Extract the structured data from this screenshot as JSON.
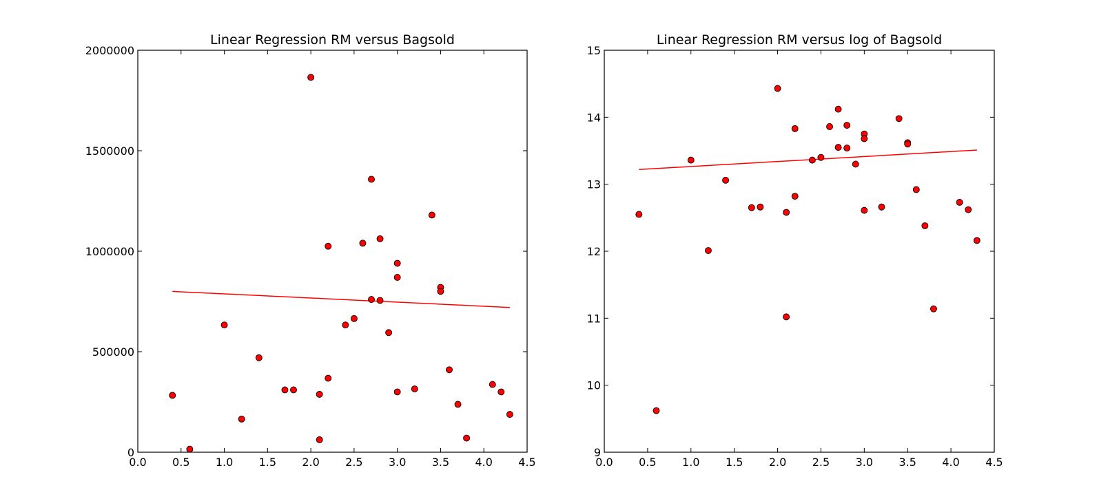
{
  "chart_data": [
    {
      "type": "scatter",
      "title": "Linear Regression RM versus Bagsold",
      "xlabel": "",
      "ylabel": "",
      "xlim": [
        0.0,
        4.5
      ],
      "ylim": [
        0,
        2000000
      ],
      "xticks": [
        "0.0",
        "0.5",
        "1.0",
        "1.5",
        "2.0",
        "2.5",
        "3.0",
        "3.5",
        "4.0",
        "4.5"
      ],
      "yticks": [
        "0",
        "500000",
        "1000000",
        "1500000",
        "2000000"
      ],
      "grid": false,
      "marker_color": "#ff0000",
      "line_color": "#ff0000",
      "points": [
        [
          0.4,
          283000
        ],
        [
          0.6,
          15000
        ],
        [
          1.0,
          633000
        ],
        [
          1.2,
          165000
        ],
        [
          1.4,
          470000
        ],
        [
          1.7,
          310000
        ],
        [
          1.8,
          310000
        ],
        [
          2.0,
          1865000
        ],
        [
          2.1,
          288000
        ],
        [
          2.1,
          62000
        ],
        [
          2.2,
          368000
        ],
        [
          2.2,
          1025000
        ],
        [
          2.4,
          633000
        ],
        [
          2.5,
          665000
        ],
        [
          2.6,
          1040000
        ],
        [
          2.7,
          1358000
        ],
        [
          2.7,
          760000
        ],
        [
          2.8,
          1062000
        ],
        [
          2.8,
          755000
        ],
        [
          2.9,
          595000
        ],
        [
          3.0,
          940000
        ],
        [
          3.0,
          870000
        ],
        [
          3.0,
          300000
        ],
        [
          3.2,
          315000
        ],
        [
          3.4,
          1180000
        ],
        [
          3.5,
          820000
        ],
        [
          3.5,
          800000
        ],
        [
          3.6,
          410000
        ],
        [
          3.7,
          238000
        ],
        [
          3.8,
          70000
        ],
        [
          4.1,
          337000
        ],
        [
          4.2,
          300000
        ],
        [
          4.3,
          188000
        ]
      ],
      "regression_line": [
        [
          0.4,
          800000
        ],
        [
          4.3,
          720000
        ]
      ]
    },
    {
      "type": "scatter",
      "title": "Linear Regression RM versus log of Bagsold",
      "xlabel": "",
      "ylabel": "",
      "xlim": [
        0.0,
        4.5
      ],
      "ylim": [
        9,
        15
      ],
      "xticks": [
        "0.0",
        "0.5",
        "1.0",
        "1.5",
        "2.0",
        "2.5",
        "3.0",
        "3.5",
        "4.0",
        "4.5"
      ],
      "yticks": [
        "9",
        "10",
        "11",
        "12",
        "13",
        "14",
        "15"
      ],
      "grid": false,
      "marker_color": "#ff0000",
      "line_color": "#ff0000",
      "points": [
        [
          0.4,
          12.55
        ],
        [
          0.6,
          9.62
        ],
        [
          1.0,
          13.36
        ],
        [
          1.2,
          12.01
        ],
        [
          1.4,
          13.06
        ],
        [
          1.7,
          12.65
        ],
        [
          1.8,
          12.66
        ],
        [
          2.0,
          14.43
        ],
        [
          2.1,
          12.58
        ],
        [
          2.1,
          11.02
        ],
        [
          2.2,
          13.83
        ],
        [
          2.2,
          12.82
        ],
        [
          2.4,
          13.36
        ],
        [
          2.5,
          13.4
        ],
        [
          2.6,
          13.86
        ],
        [
          2.7,
          14.12
        ],
        [
          2.7,
          13.55
        ],
        [
          2.8,
          13.88
        ],
        [
          2.8,
          13.54
        ],
        [
          2.9,
          13.3
        ],
        [
          3.0,
          13.75
        ],
        [
          3.0,
          13.68
        ],
        [
          3.0,
          12.61
        ],
        [
          3.2,
          12.66
        ],
        [
          3.4,
          13.98
        ],
        [
          3.5,
          13.62
        ],
        [
          3.5,
          13.6
        ],
        [
          3.6,
          12.92
        ],
        [
          3.7,
          12.38
        ],
        [
          3.8,
          11.14
        ],
        [
          4.1,
          12.73
        ],
        [
          4.2,
          12.62
        ],
        [
          4.3,
          12.16
        ]
      ],
      "regression_line": [
        [
          0.4,
          13.22
        ],
        [
          4.3,
          13.51
        ]
      ]
    }
  ]
}
